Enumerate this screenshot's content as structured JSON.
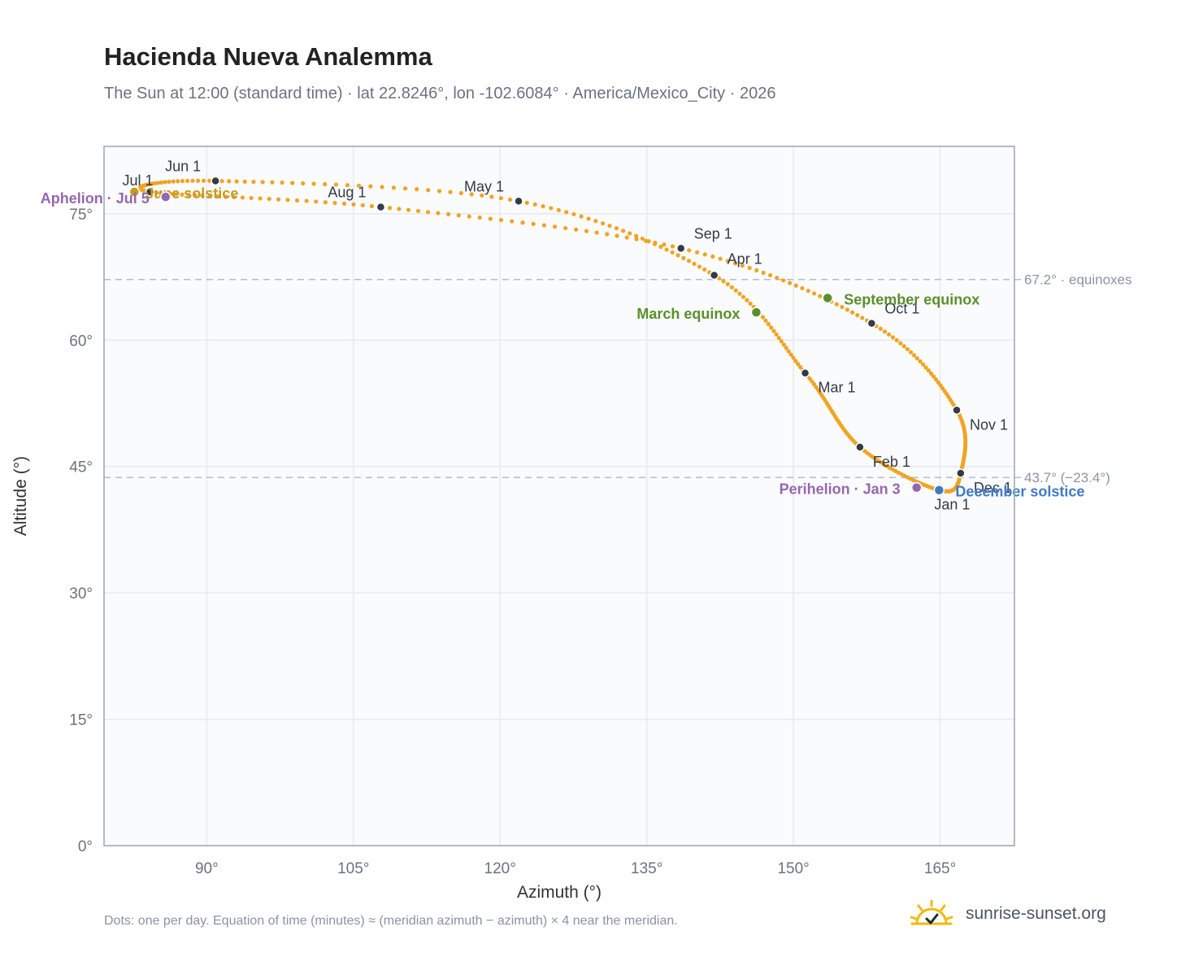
{
  "title": "Hacienda Nueva Analemma",
  "subtitle": "The Sun at 12:00 (standard time) · lat 22.8246°, lon -102.6084° · America/Mexico_City · 2026",
  "footer_note": "Dots: one per day. Equation of time (minutes) ≈ (meridian azimuth − azimuth) × 4 near the meridian.",
  "brand": {
    "name": "sunrise-sunset.org",
    "icon": "sun-logo-icon"
  },
  "colors": {
    "path": "#f0a423",
    "month_dot": "#343a46",
    "equinox": "#5a8f2c",
    "june_solstice": "#c99a1e",
    "december_solstice": "#3f7bc4",
    "apsis": "#9567b0",
    "grid": "#e6eaf0",
    "plot_bg": "#f9fbfd",
    "frame": "#9aa5b4",
    "ref_line": "#b5bcc6"
  },
  "chart_data": {
    "type": "scatter",
    "xlabel": "Azimuth (°)",
    "ylabel": "Altitude (°)",
    "xlim": [
      79.5,
      172.6
    ],
    "ylim": [
      0,
      83
    ],
    "xticks": [
      90,
      105,
      120,
      135,
      150,
      165
    ],
    "xtick_labels": [
      "90°",
      "105°",
      "120°",
      "135°",
      "150°",
      "165°"
    ],
    "yticks": [
      0,
      15,
      30,
      45,
      60,
      75
    ],
    "ytick_labels": [
      "0°",
      "15°",
      "30°",
      "45°",
      "60°",
      "75°"
    ],
    "grid": true,
    "reference_lines": [
      {
        "y": 67.2,
        "label": "67.2° · equinoxes"
      },
      {
        "y": 43.7,
        "label": "43.7° (−23.4°)"
      }
    ],
    "month_markers": [
      {
        "label": "Jan 1",
        "az": 164.9,
        "alt": 42.2
      },
      {
        "label": "Feb 1",
        "az": 156.8,
        "alt": 47.3
      },
      {
        "label": "Mar 1",
        "az": 151.2,
        "alt": 56.1
      },
      {
        "label": "Apr 1",
        "az": 141.9,
        "alt": 67.7
      },
      {
        "label": "May 1",
        "az": 121.9,
        "alt": 76.5
      },
      {
        "label": "Jun 1",
        "az": 90.9,
        "alt": 78.9
      },
      {
        "label": "Jul 1",
        "az": 84.2,
        "alt": 77.6
      },
      {
        "label": "Aug 1",
        "az": 107.8,
        "alt": 75.8
      },
      {
        "label": "Sep 1",
        "az": 138.5,
        "alt": 70.9
      },
      {
        "label": "Oct 1",
        "az": 158.0,
        "alt": 62.0
      },
      {
        "label": "Nov 1",
        "az": 166.7,
        "alt": 51.7
      },
      {
        "label": "Dec 1",
        "az": 167.1,
        "alt": 44.2
      }
    ],
    "events": [
      {
        "name": "March equinox",
        "az": 146.2,
        "alt": 63.3
      },
      {
        "name": "June solstice",
        "az": 82.6,
        "alt": 77.6
      },
      {
        "name": "September equinox",
        "az": 153.5,
        "alt": 65.0
      },
      {
        "name": "December solstice",
        "az": 164.9,
        "alt": 42.2
      },
      {
        "name": "Perihelion · Jan 3",
        "az": 162.6,
        "alt": 42.5
      },
      {
        "name": "Aphelion · Jul 5",
        "az": 85.8,
        "alt": 77.0
      }
    ]
  }
}
